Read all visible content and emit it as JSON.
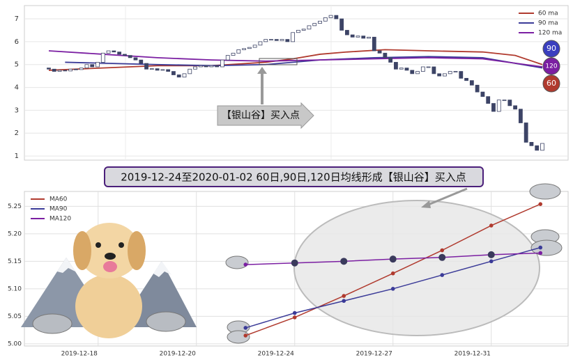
{
  "chart_data": [
    {
      "type": "candlestick",
      "open": [
        4.85,
        4.8,
        4.7,
        4.75,
        4.72,
        4.8,
        4.78,
        4.85,
        5.0,
        4.9,
        5.1,
        5.5,
        5.6,
        5.55,
        5.45,
        5.4,
        5.3,
        5.2,
        5.05,
        4.8,
        4.82,
        4.75,
        4.78,
        4.7,
        4.55,
        4.45,
        4.6,
        4.8,
        4.9,
        4.95,
        4.9,
        4.95,
        4.9,
        5.2,
        5.4,
        5.5,
        5.65,
        5.7,
        5.75,
        5.85,
        6.0,
        6.1,
        6.1,
        6.05,
        6.1,
        6.0,
        6.4,
        6.5,
        6.55,
        6.7,
        6.8,
        6.9,
        7.05,
        7.15,
        7.0,
        6.5,
        6.3,
        6.2,
        6.25,
        6.15,
        6.2,
        5.6,
        5.5,
        5.3,
        5.1,
        4.8,
        4.85,
        4.75,
        4.6,
        4.7,
        4.9,
        4.9,
        4.6,
        4.5,
        4.6,
        4.7,
        4.7,
        4.4,
        4.3,
        4.1,
        3.8,
        3.6,
        3.3,
        2.95,
        3.45,
        3.45,
        3.2,
        3.05,
        2.45,
        1.6,
        1.45,
        1.25
      ],
      "close": [
        4.8,
        4.7,
        4.75,
        4.72,
        4.8,
        4.78,
        4.85,
        5.0,
        4.9,
        5.1,
        5.5,
        5.6,
        5.55,
        5.45,
        5.4,
        5.3,
        5.2,
        5.05,
        4.8,
        4.82,
        4.75,
        4.78,
        4.7,
        4.55,
        4.45,
        4.6,
        4.8,
        4.9,
        4.95,
        4.9,
        4.95,
        4.9,
        5.2,
        5.4,
        5.5,
        5.65,
        5.7,
        5.75,
        5.85,
        6.0,
        6.1,
        6.1,
        6.05,
        6.1,
        6.0,
        6.4,
        6.5,
        6.55,
        6.7,
        6.8,
        6.9,
        7.05,
        7.15,
        7.0,
        6.5,
        6.3,
        6.2,
        6.25,
        6.15,
        6.2,
        5.6,
        5.5,
        5.3,
        5.1,
        4.8,
        4.85,
        4.75,
        4.6,
        4.7,
        4.9,
        4.9,
        4.6,
        4.5,
        4.6,
        4.7,
        4.7,
        4.4,
        4.3,
        4.1,
        3.8,
        3.6,
        3.3,
        2.95,
        3.45,
        3.45,
        3.2,
        3.05,
        2.45,
        1.6,
        1.45,
        1.25,
        1.55
      ],
      "up_color": "#ffffff",
      "down_color": "#3d4466",
      "lines": [
        {
          "name": "60 ma",
          "color": "#b03a2e",
          "x": [
            0,
            10,
            20,
            30,
            40,
            45,
            50,
            55,
            62,
            70,
            80,
            86,
            91
          ],
          "values": [
            4.75,
            4.85,
            4.95,
            4.95,
            5.1,
            5.25,
            5.45,
            5.55,
            5.65,
            5.6,
            5.55,
            5.4,
            5.0
          ]
        },
        {
          "name": "90 ma",
          "color": "#3b3b98",
          "x": [
            3,
            20,
            30,
            40,
            50,
            60,
            70,
            80,
            91
          ],
          "values": [
            5.1,
            5.0,
            4.95,
            5.0,
            5.2,
            5.3,
            5.35,
            5.3,
            4.85
          ]
        },
        {
          "name": "120 ma",
          "color": "#7b1fa2",
          "x": [
            0,
            10,
            20,
            30,
            40,
            50,
            60,
            70,
            80,
            91
          ],
          "values": [
            5.6,
            5.45,
            5.3,
            5.2,
            5.15,
            5.2,
            5.25,
            5.3,
            5.25,
            4.9
          ]
        }
      ],
      "ylim": [
        0.82,
        7.58
      ],
      "yticks": [
        1,
        2,
        3,
        4,
        5,
        6,
        7
      ],
      "annotation": "【银山谷】买入点",
      "badges": [
        {
          "label": "90",
          "color": "#3a3fbf"
        },
        {
          "label": "120",
          "color": "#7b1fa2"
        },
        {
          "label": "60",
          "color": "#b03a2e"
        }
      ]
    },
    {
      "type": "line",
      "title": "2019-12-24至2020-01-02 60日,90日,120日均线形成【银山谷】买入点",
      "categories": [
        "2019-12-18",
        null,
        "2019-12-20",
        null,
        "2019-12-24",
        null,
        "2019-12-27",
        null,
        "2019-12-31",
        null
      ],
      "series": [
        {
          "name": "MA60",
          "color": "#b03a2e",
          "values": [
            null,
            null,
            null,
            5.015,
            5.048,
            5.087,
            5.128,
            5.17,
            5.215,
            5.254
          ]
        },
        {
          "name": "MA90",
          "color": "#3b3b98",
          "values": [
            null,
            null,
            null,
            5.029,
            5.056,
            5.078,
            5.1,
            5.125,
            5.15,
            5.175
          ]
        },
        {
          "name": "MA120",
          "color": "#7b1fa2",
          "values": [
            null,
            null,
            null,
            5.144,
            5.147,
            5.15,
            5.154,
            5.157,
            5.162,
            5.165
          ]
        }
      ],
      "ylim": [
        4.996,
        5.277
      ],
      "yticks": [
        {
          "value": 5,
          "label": "5.00"
        },
        5.05,
        {
          "value": 5.1,
          "label": "5.10"
        },
        5.15,
        {
          "value": 5.2,
          "label": "5.20"
        },
        5.25
      ],
      "grid": true
    }
  ]
}
